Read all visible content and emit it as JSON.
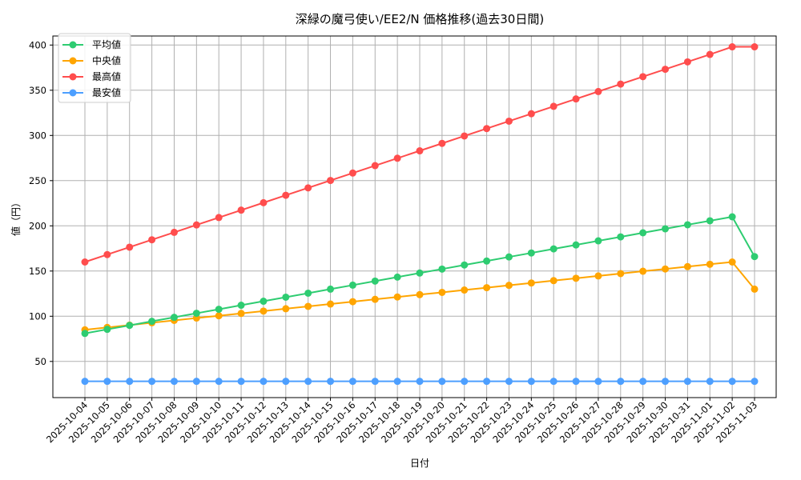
{
  "chart_data": {
    "type": "line",
    "title": "深緑の魔弓使い/EE2/N 価格推移(過去30日間)",
    "xlabel": "日付",
    "ylabel": "値（円）",
    "ylim": [
      10,
      410
    ],
    "yticks": [
      50,
      100,
      150,
      200,
      250,
      300,
      350,
      400
    ],
    "grid": true,
    "legend_position": "upper left",
    "x": [
      "2025-10-04",
      "2025-10-05",
      "2025-10-06",
      "2025-10-07",
      "2025-10-08",
      "2025-10-09",
      "2025-10-10",
      "2025-10-11",
      "2025-10-12",
      "2025-10-13",
      "2025-10-14",
      "2025-10-15",
      "2025-10-16",
      "2025-10-17",
      "2025-10-18",
      "2025-10-19",
      "2025-10-20",
      "2025-10-21",
      "2025-10-22",
      "2025-10-23",
      "2025-10-24",
      "2025-10-25",
      "2025-10-26",
      "2025-10-27",
      "2025-10-28",
      "2025-10-29",
      "2025-10-30",
      "2025-10-31",
      "2025-11-01",
      "2025-11-02",
      "2025-11-03"
    ],
    "series": [
      {
        "name": "平均値",
        "color": "#2ecc71",
        "values": [
          81,
          85.5,
          89.9,
          94.4,
          98.8,
          103.3,
          107.7,
          112.2,
          116.6,
          121.1,
          125.5,
          130,
          134.4,
          138.9,
          143.3,
          147.8,
          152.2,
          156.7,
          161.1,
          165.6,
          170,
          174.5,
          178.9,
          183.4,
          187.8,
          192.3,
          196.7,
          201.2,
          205.6,
          210,
          166
        ]
      },
      {
        "name": "中央値",
        "color": "#ffa500",
        "values": [
          85,
          87.6,
          90.2,
          92.8,
          95.4,
          98,
          100.5,
          103.1,
          105.7,
          108.3,
          110.9,
          113.5,
          116.1,
          118.7,
          121.3,
          123.9,
          126.4,
          129,
          131.6,
          134.2,
          136.8,
          139.4,
          142,
          144.6,
          147.2,
          149.8,
          152.3,
          154.9,
          157.5,
          160,
          130
        ]
      },
      {
        "name": "最高値",
        "color": "#ff4d4d",
        "values": [
          160,
          168.2,
          176.4,
          184.6,
          192.8,
          201,
          209.2,
          217.4,
          225.6,
          233.8,
          242,
          250.2,
          258.4,
          266.6,
          274.8,
          283,
          291.2,
          299.4,
          307.6,
          315.8,
          324,
          332.2,
          340.4,
          348.6,
          356.8,
          365,
          373.2,
          381.4,
          389.6,
          398,
          398
        ]
      },
      {
        "name": "最安値",
        "color": "#4d9fff",
        "values": [
          28,
          28,
          28,
          28,
          28,
          28,
          28,
          28,
          28,
          28,
          28,
          28,
          28,
          28,
          28,
          28,
          28,
          28,
          28,
          28,
          28,
          28,
          28,
          28,
          28,
          28,
          28,
          28,
          28,
          28,
          28
        ]
      }
    ]
  }
}
